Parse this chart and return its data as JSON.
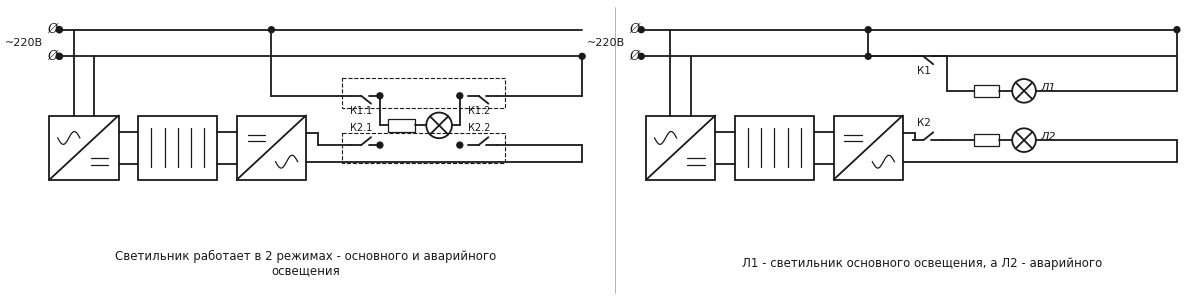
{
  "bg_color": "#ffffff",
  "line_color": "#1a1a1a",
  "text_color": "#1a1a1a",
  "caption_left": "Светильник работает в 2 режимах - основного и аварийного\nосвещения",
  "caption_right": "Л1 - светильник основного освещения, а Л2 - аварийного",
  "phi_symbol": "Ø",
  "voltage_label": "~220В",
  "label_K11": "К1.1",
  "label_K12": "К1.2",
  "label_K21": "К2.1",
  "label_K22": "К2.2",
  "label_K1": "К1",
  "label_K2": "К2",
  "label_L1": "Л1",
  "label_L2": "Л2",
  "fig_w": 12.0,
  "fig_h": 3.05,
  "dpi": 100
}
